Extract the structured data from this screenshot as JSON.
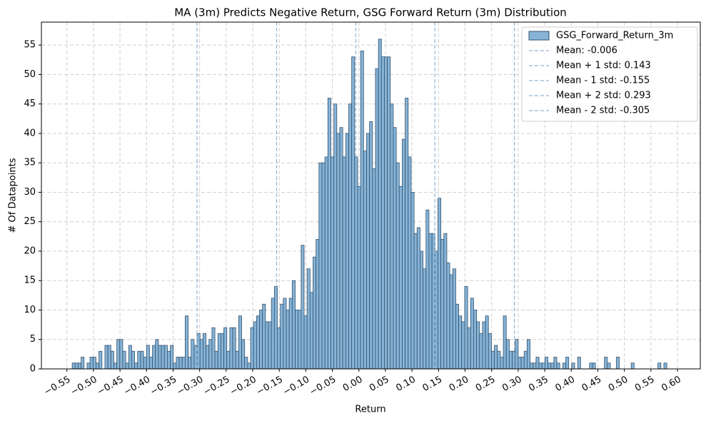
{
  "chart_data": {
    "type": "histogram",
    "title": "MA (3m) Predicts Negative Return, GSG Forward Return (3m) Distribution",
    "x_label": "Return",
    "y_label": "# Of Datapoints",
    "bins": [
      -0.54,
      -0.5344,
      -0.5288,
      -0.5232,
      -0.5176,
      -0.512,
      -0.5064,
      -0.5008,
      -0.4952,
      -0.4896,
      -0.484,
      -0.4784,
      -0.4728,
      -0.4672,
      -0.4616,
      -0.456,
      -0.4504,
      -0.4448,
      -0.4392,
      -0.4336,
      -0.428,
      -0.4224,
      -0.4168,
      -0.4112,
      -0.4056,
      -0.4,
      -0.3944,
      -0.3888,
      -0.3832,
      -0.3776,
      -0.372,
      -0.3664,
      -0.3608,
      -0.3552,
      -0.3496,
      -0.344,
      -0.3384,
      -0.3328,
      -0.3272,
      -0.3216,
      -0.316,
      -0.3104,
      -0.3048,
      -0.2992,
      -0.2936,
      -0.288,
      -0.2824,
      -0.2768,
      -0.2712,
      -0.2656,
      -0.26,
      -0.2544,
      -0.2488,
      -0.2432,
      -0.2376,
      -0.232,
      -0.2264,
      -0.2208,
      -0.2152,
      -0.2096,
      -0.204,
      -0.1984,
      -0.1928,
      -0.1872,
      -0.1816,
      -0.176,
      -0.1704,
      -0.1648,
      -0.1592,
      -0.1536,
      -0.148,
      -0.1424,
      -0.1368,
      -0.1312,
      -0.1256,
      -0.12,
      -0.1144,
      -0.1088,
      -0.1032,
      -0.0976,
      -0.092,
      -0.0864,
      -0.0808,
      -0.0752,
      -0.0696,
      -0.064,
      -0.0584,
      -0.0528,
      -0.0472,
      -0.0416,
      -0.036,
      -0.0304,
      -0.0248,
      -0.0192,
      -0.0136,
      -0.008,
      -0.0024,
      0.0032,
      0.0088,
      0.0144,
      0.02,
      0.0256,
      0.0312,
      0.0368,
      0.0424,
      0.048,
      0.0536,
      0.0592,
      0.0648,
      0.0704,
      0.076,
      0.0816,
      0.0872,
      0.0928,
      0.0984,
      0.104,
      0.1096,
      0.1152,
      0.1208,
      0.1264,
      0.132,
      0.1376,
      0.1432,
      0.1488,
      0.1544,
      0.16,
      0.1656,
      0.1712,
      0.1768,
      0.1824,
      0.188,
      0.1936,
      0.1992,
      0.2048,
      0.2104,
      0.216,
      0.2216,
      0.2272,
      0.2328,
      0.2384,
      0.244,
      0.2496,
      0.2552,
      0.2608,
      0.2664,
      0.272,
      0.2776,
      0.2832,
      0.2888,
      0.2944,
      0.3,
      0.3056,
      0.3112,
      0.3168,
      0.3224,
      0.328,
      0.3336,
      0.3392,
      0.3448,
      0.3504,
      0.356,
      0.3616,
      0.3672,
      0.3728,
      0.3784,
      0.384,
      0.3896,
      0.3952,
      0.4008,
      0.4064,
      0.412,
      0.4176,
      0.4232,
      0.4288,
      0.4344,
      0.44,
      0.4456,
      0.4512,
      0.4568,
      0.4624,
      0.468,
      0.4736,
      0.4792,
      0.4848,
      0.4904,
      0.496,
      0.5016,
      0.5072,
      0.5128,
      0.5184,
      0.524,
      0.5296,
      0.5352,
      0.5408,
      0.5464,
      0.552,
      0.5576,
      0.5632,
      0.5688,
      0.5744,
      0.58
    ],
    "series": [
      {
        "name": "GSG_Forward_Return_3m",
        "color": "#86b3d6",
        "edgecolor": "#34526e",
        "values": [
          1,
          1,
          1,
          2,
          0,
          1,
          2,
          2,
          1,
          3,
          0,
          4,
          4,
          3,
          1,
          5,
          5,
          3,
          1,
          4,
          3,
          1,
          3,
          3,
          2,
          4,
          2,
          4,
          5,
          4,
          4,
          4,
          3,
          4,
          1,
          2,
          2,
          2,
          9,
          2,
          5,
          4,
          6,
          5,
          6,
          4,
          5,
          7,
          3,
          6,
          6,
          7,
          3,
          7,
          7,
          3,
          9,
          5,
          2,
          1,
          7,
          8,
          9,
          10,
          11,
          8,
          8,
          12,
          14,
          7,
          11,
          12,
          10,
          12,
          15,
          10,
          10,
          21,
          9,
          17,
          13,
          19,
          22,
          35,
          35,
          36,
          46,
          36,
          45,
          40,
          41,
          36,
          40,
          45,
          53,
          36,
          31,
          54,
          37,
          40,
          42,
          34,
          51,
          56,
          53,
          53,
          53,
          45,
          41,
          35,
          31,
          39,
          46,
          36,
          30,
          23,
          24,
          20,
          17,
          27,
          23,
          23,
          20,
          29,
          22,
          23,
          18,
          16,
          17,
          11,
          9,
          8,
          14,
          7,
          12,
          10,
          8,
          6,
          8,
          9,
          6,
          3,
          4,
          3,
          2,
          9,
          5,
          3,
          3,
          5,
          2,
          2,
          3,
          5,
          1,
          1,
          2,
          1,
          1,
          2,
          1,
          1,
          2,
          1,
          0,
          1,
          2,
          0,
          1,
          0,
          2,
          0,
          0,
          0,
          1,
          1,
          0,
          0,
          0,
          2,
          1,
          0,
          0,
          2,
          0,
          0,
          0,
          0,
          1,
          0,
          0,
          0,
          0,
          0,
          0,
          0,
          0,
          1,
          0,
          1
        ]
      }
    ],
    "lines": [
      {
        "name": "Mean: -0.006",
        "value": -0.006,
        "color": "#8fb3d4"
      },
      {
        "name": "Mean + 1 std: 0.143",
        "value": 0.143,
        "color": "#8fb3d4"
      },
      {
        "name": "Mean - 1 std: -0.155",
        "value": -0.155,
        "color": "#8fb3d4"
      },
      {
        "name": "Mean + 2 std: 0.293",
        "value": 0.293,
        "color": "#8fb3d4"
      },
      {
        "name": "Mean - 2 std: -0.305",
        "value": -0.305,
        "color": "#8fb3d4"
      }
    ],
    "xlim": [
      -0.598,
      0.643
    ],
    "ylim": [
      0,
      58.9
    ],
    "xticks": [
      {
        "value": -0.55,
        "label": "−0.55"
      },
      {
        "value": -0.5,
        "label": "−0.50"
      },
      {
        "value": -0.45,
        "label": "−0.45"
      },
      {
        "value": -0.4,
        "label": "−0.40"
      },
      {
        "value": -0.35,
        "label": "−0.35"
      },
      {
        "value": -0.3,
        "label": "−0.30"
      },
      {
        "value": -0.25,
        "label": "−0.25"
      },
      {
        "value": -0.2,
        "label": "−0.20"
      },
      {
        "value": -0.15,
        "label": "−0.15"
      },
      {
        "value": -0.1,
        "label": "−0.10"
      },
      {
        "value": -0.05,
        "label": "−0.05"
      },
      {
        "value": 0,
        "label": "0.00"
      },
      {
        "value": 0.05,
        "label": "0.05"
      },
      {
        "value": 0.1,
        "label": "0.10"
      },
      {
        "value": 0.15,
        "label": "0.15"
      },
      {
        "value": 0.2,
        "label": "0.20"
      },
      {
        "value": 0.25,
        "label": "0.25"
      },
      {
        "value": 0.3,
        "label": "0.30"
      },
      {
        "value": 0.35,
        "label": "0.35"
      },
      {
        "value": 0.4,
        "label": "0.40"
      },
      {
        "value": 0.45,
        "label": "0.45"
      },
      {
        "value": 0.5,
        "label": "0.50"
      },
      {
        "value": 0.55,
        "label": "0.55"
      },
      {
        "value": 0.6,
        "label": "0.60"
      }
    ],
    "yticks": [
      0,
      5,
      10,
      15,
      20,
      25,
      30,
      35,
      40,
      45,
      50,
      55
    ],
    "grid": true,
    "legend": "upper right"
  }
}
